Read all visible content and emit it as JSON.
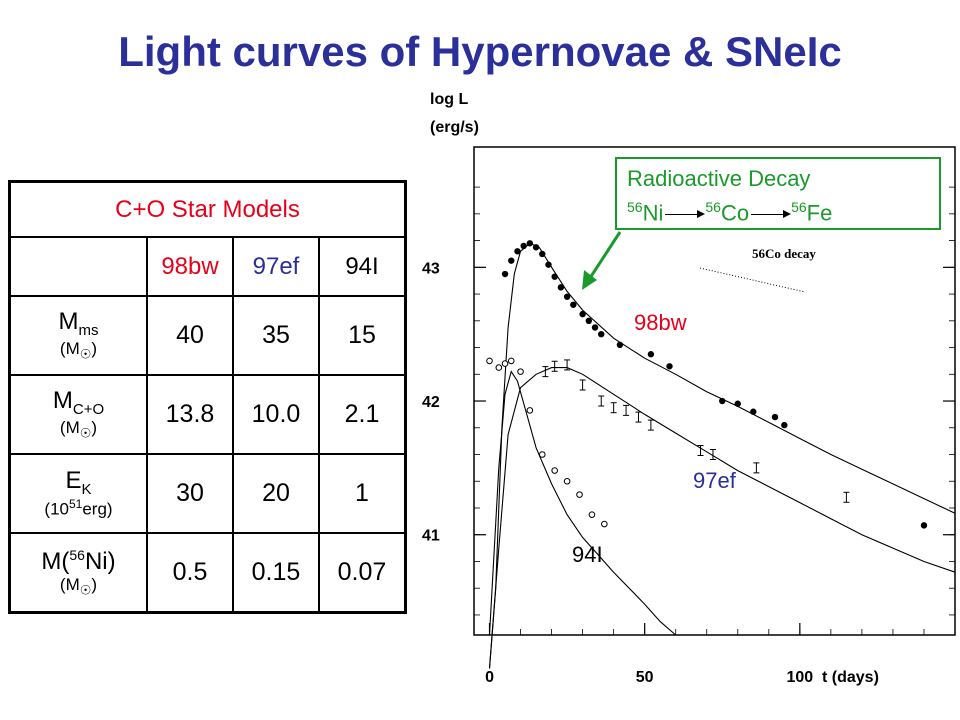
{
  "title": "Light curves of Hypernovae & SNeIc",
  "table": {
    "header": "C+O Star Models",
    "columns": [
      "98bw",
      "97ef",
      "94I"
    ],
    "rows": [
      {
        "label": "M",
        "sub": "ms",
        "unit_pre": "(M",
        "unit_post": ")",
        "values": [
          "40",
          "35",
          "15"
        ]
      },
      {
        "label": "M",
        "sub": "C+O",
        "unit_pre": "(M",
        "unit_post": ")",
        "values": [
          "13.8",
          "10.0",
          "2.1"
        ]
      },
      {
        "label": "E",
        "sub": "K",
        "unit_pre": "(10",
        "unit_sup": "51",
        "unit_post": "erg)",
        "values": [
          "30",
          "20",
          "1"
        ]
      },
      {
        "label": "M(",
        "sup": "56",
        "label_post": "Ni)",
        "unit_pre": "(M",
        "unit_post": ")",
        "values": [
          "0.5",
          "0.15",
          "0.07"
        ]
      }
    ],
    "sun_symbol": "☉"
  },
  "legend": {
    "title": "Radioactive Decay",
    "chain": [
      {
        "sup": "56",
        "el": "Ni"
      },
      {
        "sup": "56",
        "el": "Co"
      },
      {
        "sup": "56",
        "el": "Fe"
      }
    ]
  },
  "colors": {
    "green": "#1a9a2a",
    "red": "#e8001a",
    "blue": "#2b2f9a"
  },
  "chart_data": {
    "type": "line",
    "ylabel_line1": "log L",
    "ylabel_line2": "(erg/s)",
    "xlabel": "t (days)",
    "x_ticks": [
      "0",
      "50",
      "100"
    ],
    "y_ticks": [
      "43",
      "42",
      "41"
    ],
    "xlim": [
      -5,
      150
    ],
    "ylim": [
      40.25,
      43.9
    ],
    "inner_text": "56Co decay",
    "series": [
      {
        "name": "98bw",
        "color": "#e8001a",
        "model": [
          [
            0,
            40.0
          ],
          [
            2,
            40.6
          ],
          [
            4,
            41.8
          ],
          [
            6,
            42.55
          ],
          [
            8,
            42.95
          ],
          [
            10,
            43.12
          ],
          [
            13,
            43.18
          ],
          [
            16,
            43.15
          ],
          [
            20,
            43.0
          ],
          [
            25,
            42.82
          ],
          [
            30,
            42.68
          ],
          [
            40,
            42.47
          ],
          [
            50,
            42.32
          ],
          [
            60,
            42.2
          ],
          [
            70,
            42.07
          ],
          [
            80,
            41.96
          ],
          [
            90,
            41.84
          ],
          [
            100,
            41.72
          ],
          [
            110,
            41.6
          ],
          [
            120,
            41.49
          ],
          [
            130,
            41.38
          ],
          [
            140,
            41.27
          ],
          [
            150,
            41.16
          ]
        ],
        "obs": [
          [
            5,
            42.95
          ],
          [
            7,
            43.05
          ],
          [
            9,
            43.12
          ],
          [
            11,
            43.16
          ],
          [
            13,
            43.18
          ],
          [
            15,
            43.15
          ],
          [
            17,
            43.1
          ],
          [
            19,
            43.02
          ],
          [
            21,
            42.93
          ],
          [
            23,
            42.85
          ],
          [
            25,
            42.78
          ],
          [
            27,
            42.72
          ],
          [
            30,
            42.65
          ],
          [
            32,
            42.6
          ],
          [
            34,
            42.55
          ],
          [
            36,
            42.5
          ],
          [
            42,
            42.42
          ],
          [
            52,
            42.35
          ],
          [
            58,
            42.26
          ],
          [
            75,
            42.0
          ],
          [
            80,
            41.98
          ],
          [
            85,
            41.92
          ],
          [
            92,
            41.88
          ],
          [
            95,
            41.82
          ],
          [
            140,
            41.07
          ]
        ]
      },
      {
        "name": "97ef",
        "color": "#2b2f9a",
        "model": [
          [
            0,
            40.0
          ],
          [
            3,
            40.9
          ],
          [
            6,
            41.75
          ],
          [
            10,
            42.1
          ],
          [
            15,
            42.2
          ],
          [
            20,
            42.25
          ],
          [
            25,
            42.25
          ],
          [
            30,
            42.2
          ],
          [
            40,
            42.05
          ],
          [
            50,
            41.9
          ],
          [
            60,
            41.76
          ],
          [
            70,
            41.62
          ],
          [
            80,
            41.48
          ],
          [
            90,
            41.36
          ],
          [
            100,
            41.24
          ],
          [
            110,
            41.12
          ],
          [
            120,
            41.0
          ],
          [
            130,
            40.9
          ],
          [
            140,
            40.8
          ],
          [
            150,
            40.72
          ]
        ],
        "obs": [
          [
            18,
            42.22
          ],
          [
            21,
            42.26
          ],
          [
            25,
            42.27
          ],
          [
            30,
            42.12
          ],
          [
            36,
            42.0
          ],
          [
            40,
            41.95
          ],
          [
            44,
            41.93
          ],
          [
            48,
            41.88
          ],
          [
            52,
            41.82
          ],
          [
            68,
            41.63
          ],
          [
            72,
            41.6
          ],
          [
            86,
            41.5
          ],
          [
            115,
            41.28
          ]
        ]
      },
      {
        "name": "94I",
        "color": "#000000",
        "model": [
          [
            0,
            40.25
          ],
          [
            3,
            41.5
          ],
          [
            5,
            42.05
          ],
          [
            7,
            42.22
          ],
          [
            9,
            42.15
          ],
          [
            12,
            41.9
          ],
          [
            15,
            41.65
          ],
          [
            20,
            41.38
          ],
          [
            25,
            41.15
          ],
          [
            30,
            40.98
          ],
          [
            35,
            40.85
          ],
          [
            40,
            40.72
          ],
          [
            45,
            40.6
          ],
          [
            50,
            40.48
          ],
          [
            55,
            40.35
          ],
          [
            60,
            40.25
          ]
        ],
        "obs": [
          [
            0,
            42.3
          ],
          [
            3,
            42.25
          ],
          [
            5,
            42.28
          ],
          [
            7,
            42.3
          ],
          [
            10,
            42.22
          ],
          [
            13,
            41.93
          ],
          [
            17,
            41.6
          ],
          [
            21,
            41.48
          ],
          [
            25,
            41.4
          ],
          [
            29,
            41.3
          ],
          [
            33,
            41.15
          ],
          [
            37,
            41.08
          ]
        ]
      }
    ],
    "legend_position": "top-right",
    "annotation_arrow": "from legend to 98bw curve"
  }
}
